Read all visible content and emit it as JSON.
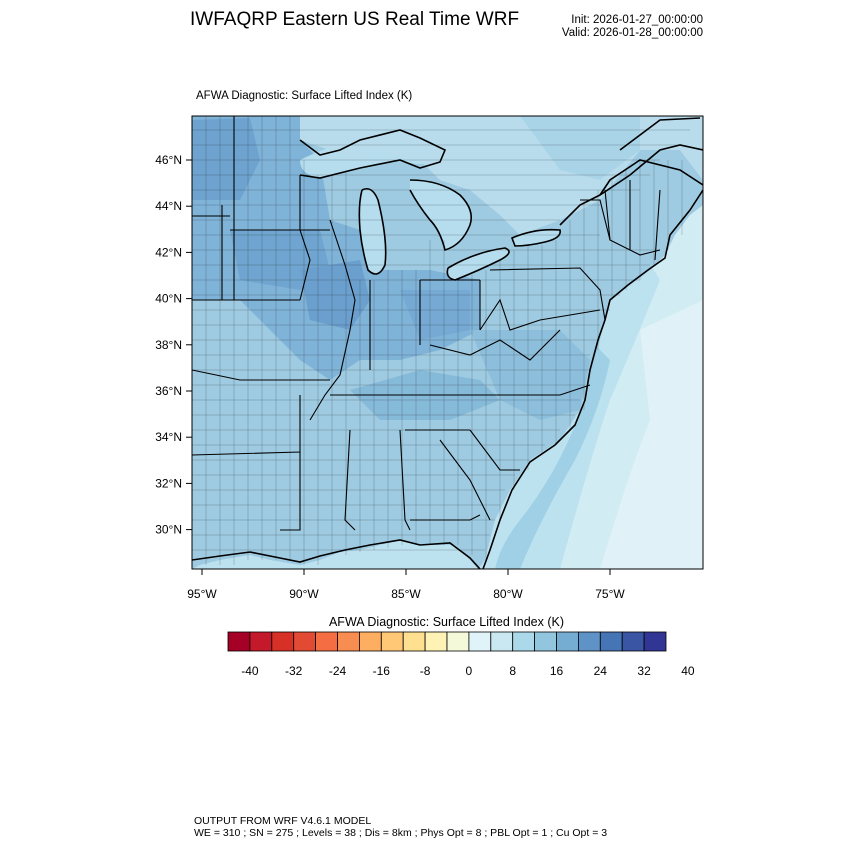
{
  "header": {
    "title": "IWFAQRP Eastern US Real Time WRF",
    "init": "Init: 2026-01-27_00:00:00",
    "valid": "Valid: 2026-01-28_00:00:00"
  },
  "map": {
    "field_title": "AFWA Diagnostic: Surface Lifted Index   (K)",
    "lat_labels": [
      "46°N",
      "44°N",
      "42°N",
      "40°N",
      "38°N",
      "36°N",
      "34°N",
      "32°N",
      "30°N"
    ],
    "lon_labels": [
      "95°W",
      "90°W",
      "85°W",
      "80°W",
      "75°W"
    ],
    "lat_values": [
      46,
      44,
      42,
      40,
      38,
      36,
      34,
      32,
      30
    ],
    "lon_values": [
      -95,
      -90,
      -85,
      -80,
      -75
    ]
  },
  "colorbar": {
    "title": "AFWA Diagnostic: Surface Lifted Index  (K)",
    "tick_labels": [
      "-40",
      "-32",
      "-24",
      "-16",
      "-8",
      "0",
      "8",
      "16",
      "24",
      "32",
      "40"
    ],
    "colors": [
      "#a50026",
      "#c3192a",
      "#d73027",
      "#e34a33",
      "#f46d43",
      "#f88d52",
      "#fdae61",
      "#fec877",
      "#fee090",
      "#fef2b4",
      "#f4f9d9",
      "#e0f3f8",
      "#c9e8f1",
      "#abd9e9",
      "#92c5de",
      "#74add1",
      "#5f92c6",
      "#4575b4",
      "#3a55a4",
      "#313695"
    ]
  },
  "footer": {
    "line1": "OUTPUT FROM WRF V4.6.1 MODEL",
    "line2": "WE = 310 ; SN = 275 ; Levels = 38 ; Dis = 8km ; Phys Opt = 8 ; PBL Opt = 1 ; Cu Opt = 3"
  }
}
